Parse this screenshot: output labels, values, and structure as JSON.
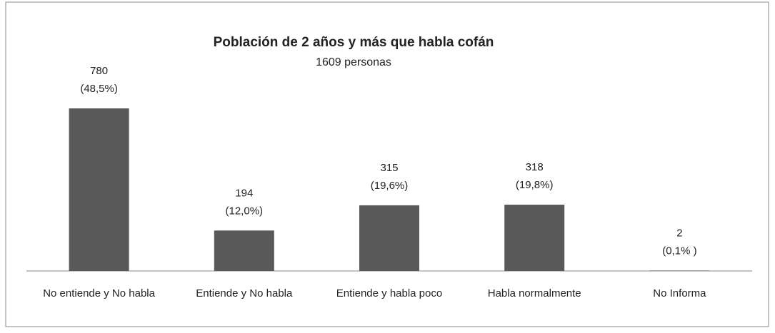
{
  "chart_data": {
    "type": "bar",
    "title": "Población de 2 años y más que habla cofán",
    "subtitle": "1609 personas",
    "categories": [
      "No entiende y No habla",
      "Entiende y No habla",
      "Entiende y habla poco",
      "Habla normalmente",
      "No Informa"
    ],
    "values": [
      780,
      194,
      315,
      318,
      2
    ],
    "share_labels": [
      "(48,5%)",
      "(12,0%)",
      "(19,6%)",
      "(19,8%)",
      "(0,1% )"
    ],
    "color": "#595959"
  }
}
